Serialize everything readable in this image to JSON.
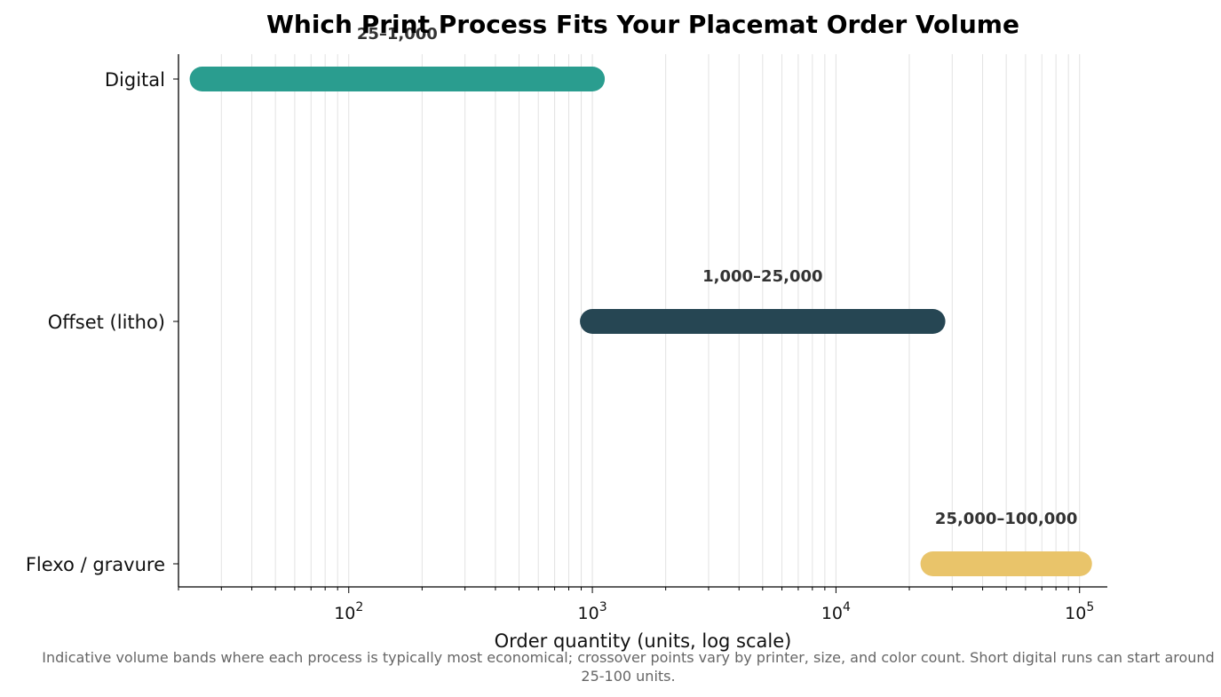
{
  "chart_data": {
    "type": "range_bar",
    "title": "Which Print Process Fits Your Placemat Order Volume",
    "xlabel": "Order quantity (units, log scale)",
    "xscale": "log",
    "xlim": [
      20,
      130000
    ],
    "x_ticks": [
      {
        "base": "10",
        "exp": "2"
      },
      {
        "base": "10",
        "exp": "3"
      },
      {
        "base": "10",
        "exp": "4"
      },
      {
        "base": "10",
        "exp": "5"
      }
    ],
    "grid": "vertical major and minor",
    "categories": [
      "Digital",
      "Offset (litho)",
      "Flexo / gravure"
    ],
    "ranges": [
      {
        "category": "Digital",
        "start": 25,
        "end": 1000,
        "label": "25–1,000",
        "color": "#2a9d8f"
      },
      {
        "category": "Offset (litho)",
        "start": 1000,
        "end": 25000,
        "label": "1,000–25,000",
        "color": "#264653"
      },
      {
        "category": "Flexo / gravure",
        "start": 25000,
        "end": 100000,
        "label": "25,000–100,000",
        "color": "#e9c46a"
      }
    ],
    "footnote": "Indicative volume bands where each process is typically most economical; crossover points vary by printer, size, and color count. Short digital runs can start around 25-100 units."
  }
}
